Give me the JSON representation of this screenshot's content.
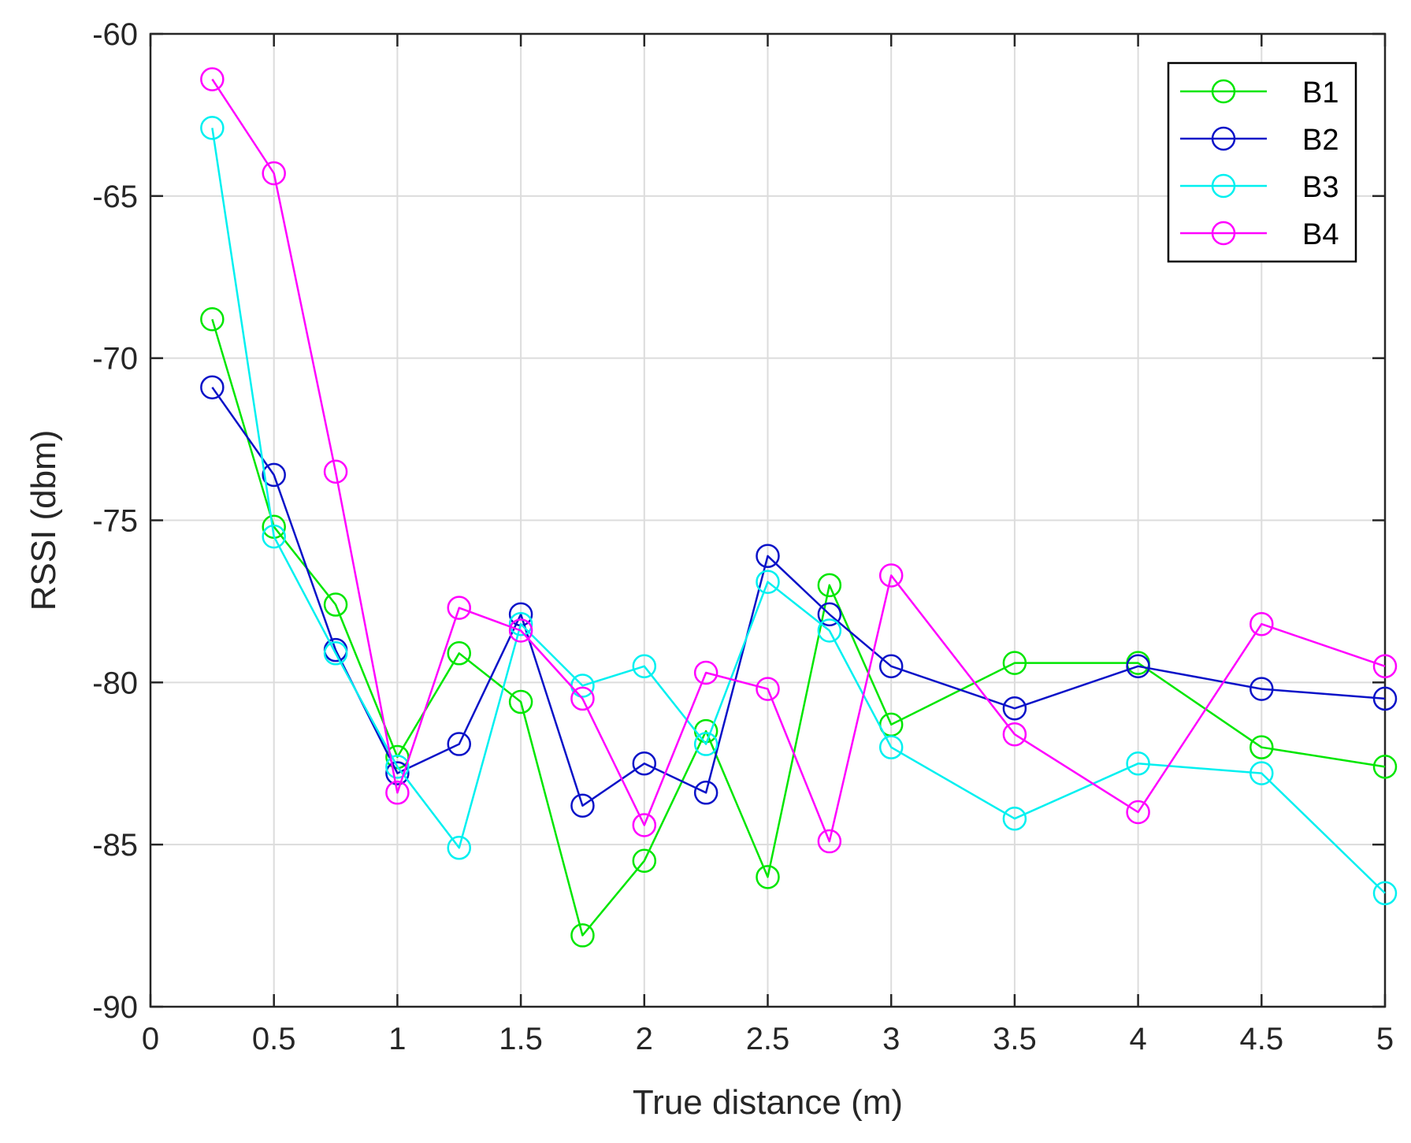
{
  "chart_data": {
    "type": "line",
    "title": "",
    "xlabel": "True distance (m)",
    "ylabel": "RSSI (dbm)",
    "xlim": [
      0,
      5
    ],
    "ylim": [
      -90,
      -60
    ],
    "xticks": [
      0,
      0.5,
      1,
      1.5,
      2,
      2.5,
      3,
      3.5,
      4,
      4.5,
      5
    ],
    "xtick_labels": [
      "0",
      "0.5",
      "1",
      "1.5",
      "2",
      "2.5",
      "3",
      "3.5",
      "4",
      "4.5",
      "5"
    ],
    "yticks": [
      -90,
      -85,
      -80,
      -75,
      -70,
      -65,
      -60
    ],
    "ytick_labels": [
      "-90",
      "-85",
      "-80",
      "-75",
      "-70",
      "-65",
      "-60"
    ],
    "grid": true,
    "marker": "circle",
    "legend_position": "top-right",
    "x": [
      0.25,
      0.5,
      0.75,
      1,
      1.25,
      1.5,
      1.75,
      2,
      2.25,
      2.5,
      2.75,
      3,
      3.5,
      4,
      4.5,
      5
    ],
    "series": [
      {
        "name": "B1",
        "color": "#00e600",
        "values": [
          -68.8,
          -75.2,
          -77.6,
          -82.3,
          -79.1,
          -80.6,
          -87.8,
          -85.5,
          -81.5,
          -86.0,
          -77.0,
          -81.3,
          -79.4,
          -79.4,
          -82.0,
          -82.6
        ]
      },
      {
        "name": "B2",
        "color": "#0a12c8",
        "values": [
          -70.9,
          -73.6,
          -79.0,
          -82.8,
          -81.9,
          -77.9,
          -83.8,
          -82.5,
          -83.4,
          -76.1,
          -77.9,
          -79.5,
          -80.8,
          -79.5,
          -80.2,
          -80.5
        ]
      },
      {
        "name": "B3",
        "color": "#00f0f0",
        "values": [
          -62.9,
          -75.5,
          -79.1,
          -82.6,
          -85.1,
          -78.2,
          -80.1,
          -79.5,
          -81.9,
          -76.9,
          -78.4,
          -82.0,
          -84.2,
          -82.5,
          -82.8,
          -86.5
        ]
      },
      {
        "name": "B4",
        "color": "#ff00ff",
        "values": [
          -61.4,
          -64.3,
          -73.5,
          -83.4,
          -77.7,
          -78.4,
          -80.5,
          -84.4,
          -79.7,
          -80.2,
          -84.9,
          -76.7,
          -81.6,
          -84.0,
          -78.2,
          -79.5
        ]
      }
    ]
  }
}
